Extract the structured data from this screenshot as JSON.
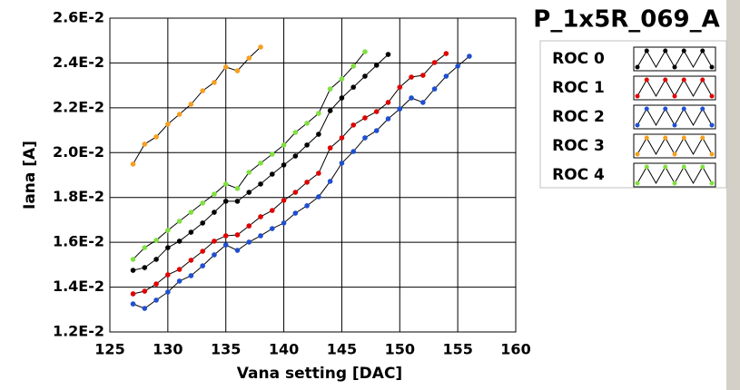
{
  "chart_data": {
    "type": "line",
    "title": "P_1x5R_069_A",
    "x_label": "Vana setting [DAC]",
    "y_label": "Iana [A]",
    "xlim": [
      125,
      160
    ],
    "xticks": [
      125,
      130,
      135,
      140,
      145,
      150,
      155,
      160
    ],
    "ylim": [
      0.012,
      0.026
    ],
    "yticks": [
      {
        "value": 0.012,
        "label": "1.2E-2"
      },
      {
        "value": 0.014,
        "label": "1.4E-2"
      },
      {
        "value": 0.016,
        "label": "1.6E-2"
      },
      {
        "value": 0.018,
        "label": "1.8E-2"
      },
      {
        "value": 0.02,
        "label": "2.0E-2"
      },
      {
        "value": 0.022,
        "label": "2.2E-2"
      },
      {
        "value": 0.024,
        "label": "2.4E-2"
      },
      {
        "value": 0.026,
        "label": "2.6E-2"
      }
    ],
    "grid": true,
    "legend": "right",
    "series": [
      {
        "name": "ROC 0",
        "color": "#000000",
        "x": [
          127,
          128,
          129,
          130,
          131,
          132,
          133,
          134,
          135,
          136,
          137,
          138,
          139,
          140,
          141,
          142,
          143,
          144,
          145,
          146,
          147,
          148,
          149
        ],
        "values": [
          0.01475,
          0.01487,
          0.01524,
          0.01576,
          0.01605,
          0.01645,
          0.01686,
          0.01734,
          0.01783,
          0.01783,
          0.01823,
          0.0186,
          0.01904,
          0.01945,
          0.01985,
          0.02034,
          0.02082,
          0.02187,
          0.02244,
          0.02292,
          0.02341,
          0.0239,
          0.02438
        ]
      },
      {
        "name": "ROC 1",
        "color": "#e00000",
        "x": [
          127,
          128,
          129,
          130,
          131,
          132,
          133,
          134,
          135,
          136,
          137,
          138,
          139,
          140,
          141,
          142,
          143,
          144,
          145,
          146,
          147,
          148,
          149,
          150,
          151,
          152,
          153,
          154
        ],
        "values": [
          0.0137,
          0.01382,
          0.01414,
          0.01455,
          0.01479,
          0.0152,
          0.0156,
          0.01605,
          0.01629,
          0.01633,
          0.01673,
          0.01714,
          0.01742,
          0.01787,
          0.01823,
          0.01868,
          0.01908,
          0.02021,
          0.02066,
          0.02123,
          0.02155,
          0.02183,
          0.02224,
          0.02292,
          0.02337,
          0.02345,
          0.02402,
          0.02442
        ]
      },
      {
        "name": "ROC 2",
        "color": "#1f4fd0",
        "x": [
          127,
          128,
          129,
          130,
          131,
          132,
          133,
          134,
          135,
          136,
          137,
          138,
          139,
          140,
          141,
          142,
          143,
          144,
          145,
          146,
          147,
          148,
          149,
          150,
          151,
          152,
          153,
          154,
          155,
          156
        ],
        "values": [
          0.01325,
          0.01305,
          0.01342,
          0.01378,
          0.01427,
          0.01451,
          0.01495,
          0.01544,
          0.01588,
          0.01564,
          0.01601,
          0.01629,
          0.01661,
          0.01686,
          0.0173,
          0.01763,
          0.01803,
          0.01872,
          0.01953,
          0.02005,
          0.02066,
          0.02098,
          0.02151,
          0.02195,
          0.02244,
          0.02224,
          0.02284,
          0.02341,
          0.02386,
          0.0243
        ]
      },
      {
        "name": "ROC 3",
        "color": "#f5a020",
        "x": [
          127,
          128,
          129,
          130,
          131,
          132,
          133,
          134,
          135,
          136,
          137,
          138
        ],
        "values": [
          0.01949,
          0.02038,
          0.0207,
          0.02127,
          0.02171,
          0.02216,
          0.02276,
          0.02313,
          0.02382,
          0.02365,
          0.02422,
          0.02471
        ]
      },
      {
        "name": "ROC 4",
        "color": "#80e040",
        "x": [
          127,
          128,
          129,
          130,
          131,
          132,
          133,
          134,
          135,
          136,
          137,
          138,
          139,
          140,
          141,
          142,
          143,
          144,
          145,
          146,
          147
        ],
        "values": [
          0.01524,
          0.01576,
          0.01609,
          0.01653,
          0.01694,
          0.01734,
          0.01775,
          0.01815,
          0.0186,
          0.0184,
          0.01912,
          0.01953,
          0.01993,
          0.02034,
          0.0209,
          0.02131,
          0.02175,
          0.02284,
          0.02329,
          0.02386,
          0.0245
        ]
      }
    ]
  }
}
